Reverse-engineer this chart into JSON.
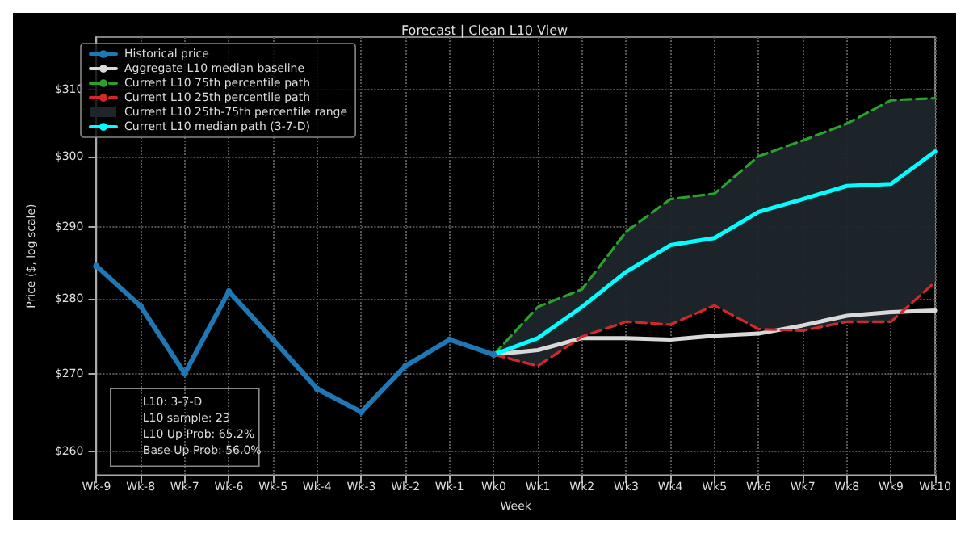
{
  "chart_data": {
    "type": "line",
    "title": "Forecast | Clean L10 View",
    "xlabel": "Week",
    "ylabel": "Price ($, log scale)",
    "categories": [
      "Wk-9",
      "Wk-8",
      "Wk-7",
      "Wk-6",
      "Wk-5",
      "Wk-4",
      "Wk-3",
      "Wk-2",
      "Wk-1",
      "Wk0",
      "Wk1",
      "Wk2",
      "Wk3",
      "Wk4",
      "Wk5",
      "Wk6",
      "Wk7",
      "Wk8",
      "Wk9",
      "Wk10"
    ],
    "log": true,
    "ylim": [
      257,
      318
    ],
    "yticks": [
      {
        "value": 260,
        "label": "$260"
      },
      {
        "value": 270,
        "label": "$270"
      },
      {
        "value": 280,
        "label": "$280"
      },
      {
        "value": 290,
        "label": "$290"
      },
      {
        "value": 300,
        "label": "$300"
      },
      {
        "value": 310,
        "label": "$310"
      }
    ],
    "grid": true,
    "legend": "top left",
    "line_style": "solid",
    "series": [
      {
        "name": "Historical price",
        "color": "#1f77b4",
        "marker": "circle",
        "values": [
          284.5,
          279,
          270,
          281,
          274.5,
          268,
          265,
          271,
          274.5,
          272.5,
          null,
          null,
          null,
          null,
          null,
          null,
          null,
          null,
          null,
          null
        ]
      },
      {
        "name": "Aggregate L10 median baseline",
        "color": "#d9d9d9",
        "marker": "none",
        "values": [
          null,
          null,
          null,
          null,
          null,
          null,
          null,
          null,
          null,
          272.5,
          273.1,
          274.7,
          274.7,
          274.5,
          275.0,
          275.3,
          276.4,
          277.7,
          278.2,
          278.4
        ]
      },
      {
        "name": "Current L10 75th percentile path",
        "color": "#2ca02c",
        "marker": "none",
        "line_style": "dashed",
        "values": [
          null,
          null,
          null,
          null,
          null,
          null,
          null,
          null,
          null,
          272.5,
          278.9,
          281.3,
          289.3,
          293.9,
          294.7,
          300.1,
          302.4,
          304.9,
          308.4,
          308.7
        ]
      },
      {
        "name": "Current L10 25th percentile path",
        "color": "#d62728",
        "marker": "none",
        "line_style": "dashed",
        "values": [
          null,
          null,
          null,
          null,
          null,
          null,
          null,
          null,
          null,
          272.5,
          271.0,
          274.9,
          276.9,
          276.5,
          279.1,
          275.9,
          275.7,
          276.9,
          276.9,
          282.3
        ]
      },
      {
        "name": "Current L10 25th-75th percentile range",
        "type": "area",
        "color": "#1f262b",
        "values": [
          null,
          null,
          null,
          null,
          null,
          null,
          null,
          null,
          null,
          null,
          null,
          null,
          null,
          null,
          null,
          null,
          null,
          null,
          null,
          null
        ],
        "lower": [
          null,
          null,
          null,
          null,
          null,
          null,
          null,
          null,
          null,
          272.5,
          271.0,
          274.9,
          276.9,
          276.5,
          279.1,
          275.9,
          275.7,
          276.9,
          276.9,
          282.3
        ],
        "upper": [
          null,
          null,
          null,
          null,
          null,
          null,
          null,
          null,
          null,
          272.5,
          278.9,
          281.3,
          289.3,
          293.9,
          294.7,
          300.1,
          302.4,
          304.9,
          308.4,
          308.7
        ]
      },
      {
        "name": "Current L10 median path (3-7-D)",
        "color": "#00ffff",
        "marker": "none",
        "values": [
          null,
          null,
          null,
          null,
          null,
          null,
          null,
          null,
          null,
          272.5,
          274.7,
          278.9,
          283.7,
          287.4,
          288.4,
          292.1,
          293.9,
          295.8,
          296.1,
          300.8
        ]
      }
    ],
    "annotations": [
      "L10: 3-7-D",
      "L10 sample: 23",
      "L10 Up Prob: 65.2%",
      "Base Up Prob: 56.0%"
    ]
  }
}
